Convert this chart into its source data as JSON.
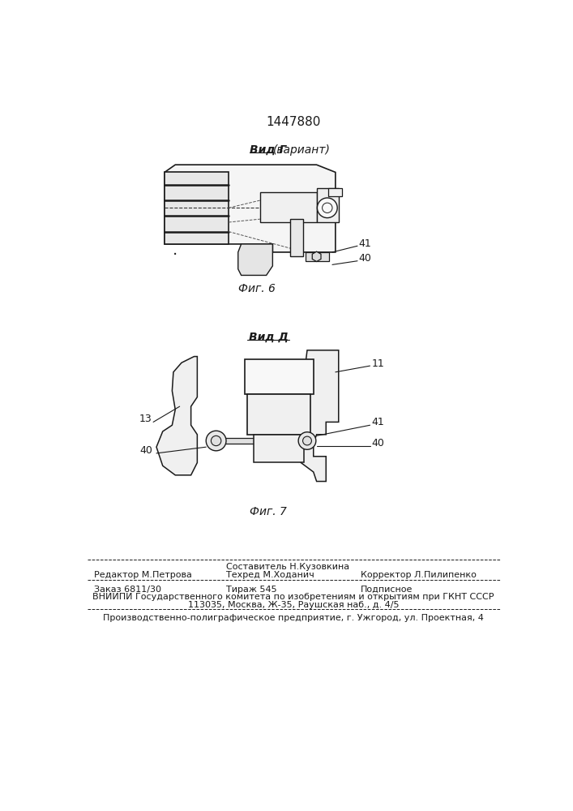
{
  "title_number": "1447880",
  "fig6_label": "Фиг. 6",
  "fig7_label": "Фиг. 7",
  "vid_g_label": "Вид Г",
  "vid_g_sub": "(вариант)",
  "vid_d_label": "Вид Д",
  "label_41_fig6": "41",
  "label_40_fig6": "40",
  "label_11_fig7": "11",
  "label_13_fig7": "13",
  "label_40_fig7a": "40",
  "label_41_fig7": "41",
  "label_40_fig7b": "40",
  "footer_editor": "Редактор М.Петрова",
  "footer_composer": "Составитель Н.Кузовкина",
  "footer_tech": "Техред М.Ходанич",
  "footer_corrector": "Корректор Л.Пилипенко",
  "footer_order": "Заказ 6811/30",
  "footer_tirazh": "Тираж 545",
  "footer_podpisnoe": "Подписное",
  "footer_vniip1": "ВНИИПИ Государственного комитета по изобретениям и открытиям при ГКНТ СССР",
  "footer_vniip2": "113035, Москва, Ж-35, Раушская наб., д. 4/5",
  "footer_prod": "Производственно-полиграфическое предприятие, г. Ужгород, ул. Проектная, 4",
  "bg_color": "#ffffff",
  "line_color": "#1a1a1a"
}
